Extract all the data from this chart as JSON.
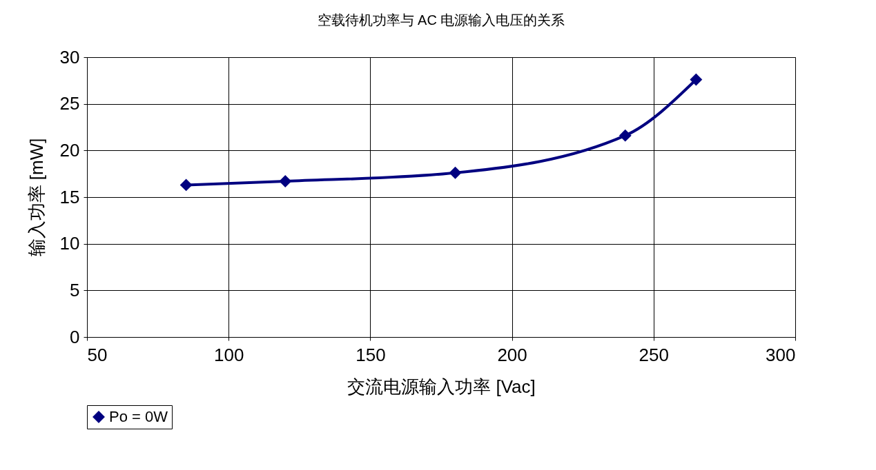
{
  "chart_data": {
    "type": "line",
    "title": "空载待机功率与 AC  电源输入电压的关系",
    "xlabel": "交流电源输入功率 [Vac]",
    "ylabel": "输入功率 [mW]",
    "x": [
      85,
      120,
      180,
      240,
      265
    ],
    "series": [
      {
        "name": "Po = 0W",
        "color": "#000080",
        "values": [
          16.3,
          16.7,
          17.6,
          21.6,
          27.6
        ]
      }
    ],
    "xlim": [
      50,
      300
    ],
    "xticks": [
      50,
      100,
      150,
      200,
      250,
      300
    ],
    "ylim": [
      0,
      30
    ],
    "yticks": [
      0,
      5,
      10,
      15,
      20,
      25,
      30
    ],
    "grid": true,
    "legend": "bottom",
    "marker": "diamond",
    "line_style": "solid"
  }
}
